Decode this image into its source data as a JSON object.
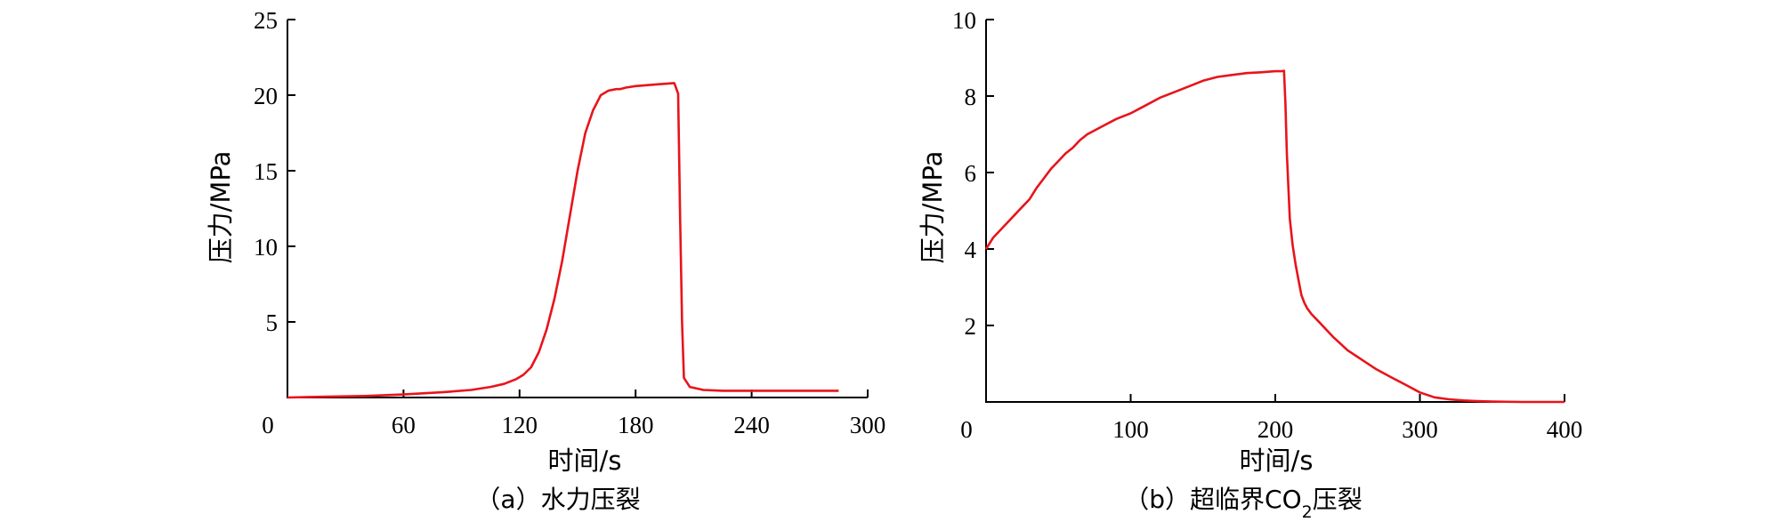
{
  "chart_data": [
    {
      "type": "line",
      "caption_prefix": "（a）",
      "caption_text": "水力压裂",
      "xlabel": "时间/s",
      "ylabel": "压力/MPa",
      "xlim": [
        0,
        300
      ],
      "ylim": [
        0,
        25
      ],
      "xticks": [
        0,
        60,
        120,
        180,
        240,
        300
      ],
      "yticks": [
        5,
        10,
        15,
        20,
        25
      ],
      "series_color": "#e8141b",
      "series": [
        {
          "x": [
            0,
            20,
            40,
            60,
            80,
            95,
            105,
            112,
            118,
            122,
            126,
            130,
            134,
            138,
            142,
            146,
            150,
            154,
            158,
            162,
            166,
            170,
            172,
            175,
            180,
            190,
            200,
            202,
            203,
            204,
            205,
            208,
            215,
            225,
            235,
            250,
            265,
            285
          ],
          "y": [
            0.0,
            0.05,
            0.1,
            0.2,
            0.35,
            0.5,
            0.7,
            0.9,
            1.2,
            1.5,
            2.0,
            3.0,
            4.5,
            6.5,
            9.0,
            12.0,
            15.0,
            17.5,
            19.0,
            20.0,
            20.3,
            20.4,
            20.4,
            20.5,
            20.6,
            20.7,
            20.8,
            20.1,
            12.0,
            5.0,
            1.3,
            0.7,
            0.5,
            0.45,
            0.45,
            0.45,
            0.45,
            0.45
          ]
        }
      ]
    },
    {
      "type": "line",
      "caption_prefix": "（b）",
      "caption_text": "超临界CO",
      "caption_sub": "2",
      "caption_suffix": "压裂",
      "xlabel": "时间/s",
      "ylabel": "压力/MPa",
      "xlim": [
        0,
        400
      ],
      "ylim": [
        0,
        10
      ],
      "xticks": [
        0,
        100,
        200,
        300,
        400
      ],
      "yticks": [
        2,
        4,
        6,
        8,
        10
      ],
      "series_color": "#e8141b",
      "series": [
        {
          "x": [
            0,
            5,
            10,
            15,
            20,
            25,
            30,
            35,
            40,
            45,
            50,
            55,
            60,
            65,
            70,
            80,
            90,
            100,
            110,
            120,
            130,
            140,
            150,
            160,
            170,
            180,
            190,
            200,
            204,
            206,
            207,
            208,
            210,
            212,
            214,
            216,
            218,
            220,
            222,
            225,
            230,
            240,
            250,
            260,
            270,
            280,
            290,
            300,
            310,
            320,
            330,
            340,
            350,
            370,
            400
          ],
          "y": [
            4.0,
            4.3,
            4.5,
            4.7,
            4.9,
            5.1,
            5.3,
            5.6,
            5.85,
            6.1,
            6.3,
            6.5,
            6.65,
            6.85,
            7.0,
            7.2,
            7.4,
            7.55,
            7.75,
            7.95,
            8.1,
            8.25,
            8.4,
            8.5,
            8.55,
            8.6,
            8.62,
            8.65,
            8.65,
            8.66,
            7.8,
            6.5,
            4.8,
            4.1,
            3.6,
            3.2,
            2.8,
            2.6,
            2.45,
            2.3,
            2.1,
            1.7,
            1.35,
            1.1,
            0.85,
            0.65,
            0.45,
            0.25,
            0.12,
            0.07,
            0.04,
            0.02,
            0.01,
            0.0,
            0.0
          ]
        }
      ]
    }
  ]
}
